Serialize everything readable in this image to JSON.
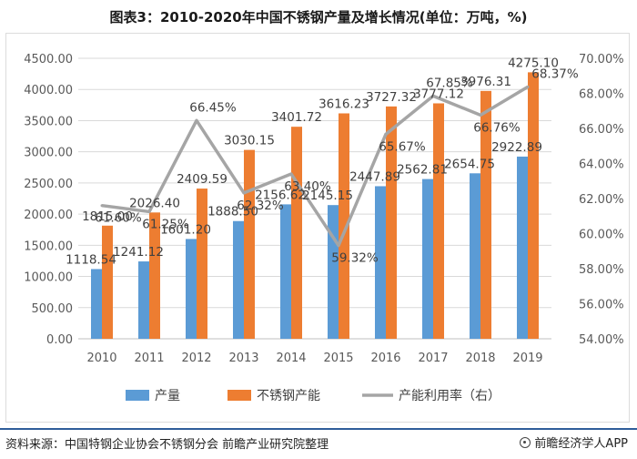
{
  "header": {
    "title": "图表3：2010-2020年中国不锈钢产量及增长情况(单位：万吨，%)"
  },
  "footer": {
    "source": "资料来源：中国特钢企业协会不锈钢分会 前瞻产业研究院整理",
    "brand": "前瞻经济学人APP"
  },
  "colors": {
    "production": "#5b9bd5",
    "capacity": "#ed7d31",
    "utilization": "#a5a5a5"
  },
  "chart_data": {
    "type": "bar",
    "title": "图表3：2010-2020年中国不锈钢产量及增长情况(单位：万吨，%)",
    "categories": [
      "2010",
      "2011",
      "2012",
      "2013",
      "2014",
      "2015",
      "2016",
      "2017",
      "2018",
      "2019"
    ],
    "series": [
      {
        "name": "产量",
        "type": "bar",
        "axis": "left",
        "values": [
          1118.54,
          1241.12,
          1601.2,
          1888.5,
          2156.62,
          2145.15,
          2447.89,
          2562.81,
          2654.75,
          2922.89
        ],
        "labels": [
          "1118.54",
          "1241.12",
          "1601.20",
          "1888.50",
          "2156.62",
          "2145.15",
          "2447.89",
          "2562.81",
          "2654.75",
          "2922.89"
        ]
      },
      {
        "name": "不锈钢产能",
        "type": "bar",
        "axis": "left",
        "values": [
          1815.0,
          2026.4,
          2409.59,
          3030.15,
          3401.72,
          3616.23,
          3727.32,
          3777.12,
          3976.31,
          4275.1
        ],
        "labels": [
          "1815.00",
          "2026.40",
          "2409.59",
          "3030.15",
          "3401.72",
          "3616.23",
          "3727.32",
          "3777.12",
          "3976.31",
          "4275.10"
        ]
      },
      {
        "name": "产能利用率（右）",
        "type": "line",
        "axis": "right",
        "values": [
          61.6,
          61.25,
          66.45,
          62.32,
          63.4,
          59.32,
          65.67,
          67.85,
          66.76,
          68.37
        ],
        "labels": [
          "61.60%",
          "61.25%",
          "66.45%",
          "62.32%",
          "63.40%",
          "59.32%",
          "65.67%",
          "67.85%",
          "66.76%",
          "68.37%"
        ]
      }
    ],
    "y_left": {
      "min": 0,
      "max": 4500,
      "ticks": [
        "0.00",
        "500.00",
        "1000.00",
        "1500.00",
        "2000.00",
        "2500.00",
        "3000.00",
        "3500.00",
        "4000.00",
        "4500.00"
      ]
    },
    "y_right": {
      "min": 54,
      "max": 70,
      "ticks": [
        "54.00%",
        "56.00%",
        "58.00%",
        "60.00%",
        "62.00%",
        "64.00%",
        "66.00%",
        "68.00%",
        "70.00%"
      ]
    },
    "legend": [
      "产量",
      "不锈钢产能",
      "产能利用率（右）"
    ],
    "legend_position": "bottom",
    "grid": true
  }
}
